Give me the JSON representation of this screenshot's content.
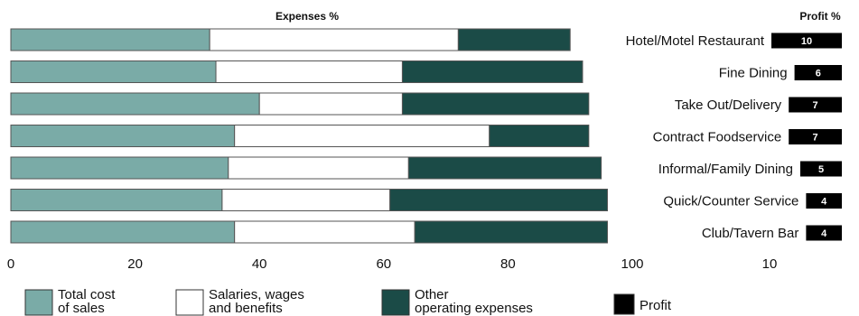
{
  "chart_data": {
    "type": "bar",
    "orientation": "horizontal",
    "stacked": true,
    "header_left": "Expenses  %",
    "header_right": "Profit  %",
    "categories": [
      "Hotel/Motel Restaurant",
      "Fine Dining",
      "Take Out/Delivery",
      "Contract Foodservice",
      "Informal/Family Dining",
      "Quick/Counter Service",
      "Club/Tavern Bar"
    ],
    "series": [
      {
        "name": "Total cost of sales",
        "values": [
          32,
          33,
          40,
          36,
          35,
          34,
          36
        ]
      },
      {
        "name": "Salaries, wages and benefits",
        "values": [
          40,
          30,
          23,
          41,
          29,
          27,
          29
        ]
      },
      {
        "name": "Other operating expenses",
        "values": [
          18,
          29,
          30,
          16,
          31,
          35,
          31
        ]
      }
    ],
    "profit": {
      "name": "Profit",
      "values": [
        10,
        6,
        7,
        7,
        5,
        4,
        4
      ],
      "labels": [
        "10",
        "6",
        "7",
        "7",
        "5",
        "4",
        "4"
      ]
    },
    "x_ticks": [
      "0",
      "20",
      "40",
      "60",
      "80",
      "100"
    ],
    "xlim": [
      0,
      100
    ],
    "profit_ticks": [
      "10"
    ],
    "legend": [
      {
        "label_lines": [
          "Total cost",
          "of sales"
        ],
        "color": "#7aaba7"
      },
      {
        "label_lines": [
          "Salaries, wages",
          "and benefits"
        ],
        "color": "#ffffff"
      },
      {
        "label_lines": [
          "Other",
          "operating expenses"
        ],
        "color": "#1b4b47"
      },
      {
        "label_lines": [
          "Profit"
        ],
        "color": "#000000"
      }
    ],
    "colors": {
      "cost": "#7aaba7",
      "salaries": "#ffffff",
      "other": "#1b4b47",
      "profit": "#000000",
      "outline": "#555555"
    },
    "grid": false,
    "legend_position": "bottom"
  }
}
